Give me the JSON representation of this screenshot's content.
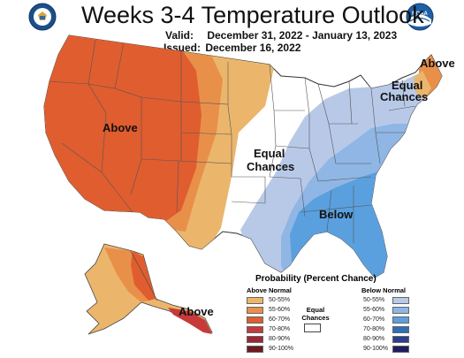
{
  "header": {
    "title": "Weeks 3-4 Temperature Outlook",
    "valid_label": "Valid:",
    "valid_value": "December 31, 2022 - January 13, 2023",
    "issued_label": "Issued:",
    "issued_value": "December 16, 2022"
  },
  "logos": {
    "left": "department-of-commerce-seal",
    "right": "noaa-logo",
    "noaa_text": "NOAA"
  },
  "map_labels": {
    "west": "Above",
    "central_1": "Equal",
    "central_2": "Chances",
    "southeast": "Below",
    "maine": "Above",
    "northeast_1": "Equal",
    "northeast_2": "Chances",
    "alaska": "Above"
  },
  "legend": {
    "title": "Probability (Percent Chance)",
    "above_header": "Above Normal",
    "below_header": "Below Normal",
    "equal_1": "Equal",
    "equal_2": "Chances",
    "bins": [
      "50-55%",
      "55-60%",
      "60-70%",
      "70-80%",
      "80-90%",
      "90-100%"
    ],
    "above_colors": [
      "#ebb66c",
      "#e8904a",
      "#e05d2f",
      "#c63a3a",
      "#9e2731",
      "#6b1a1f"
    ],
    "below_colors": [
      "#b8c9e8",
      "#8fb6e4",
      "#5aa0de",
      "#2e6fba",
      "#2b3f8f",
      "#1e1d5e"
    ]
  }
}
